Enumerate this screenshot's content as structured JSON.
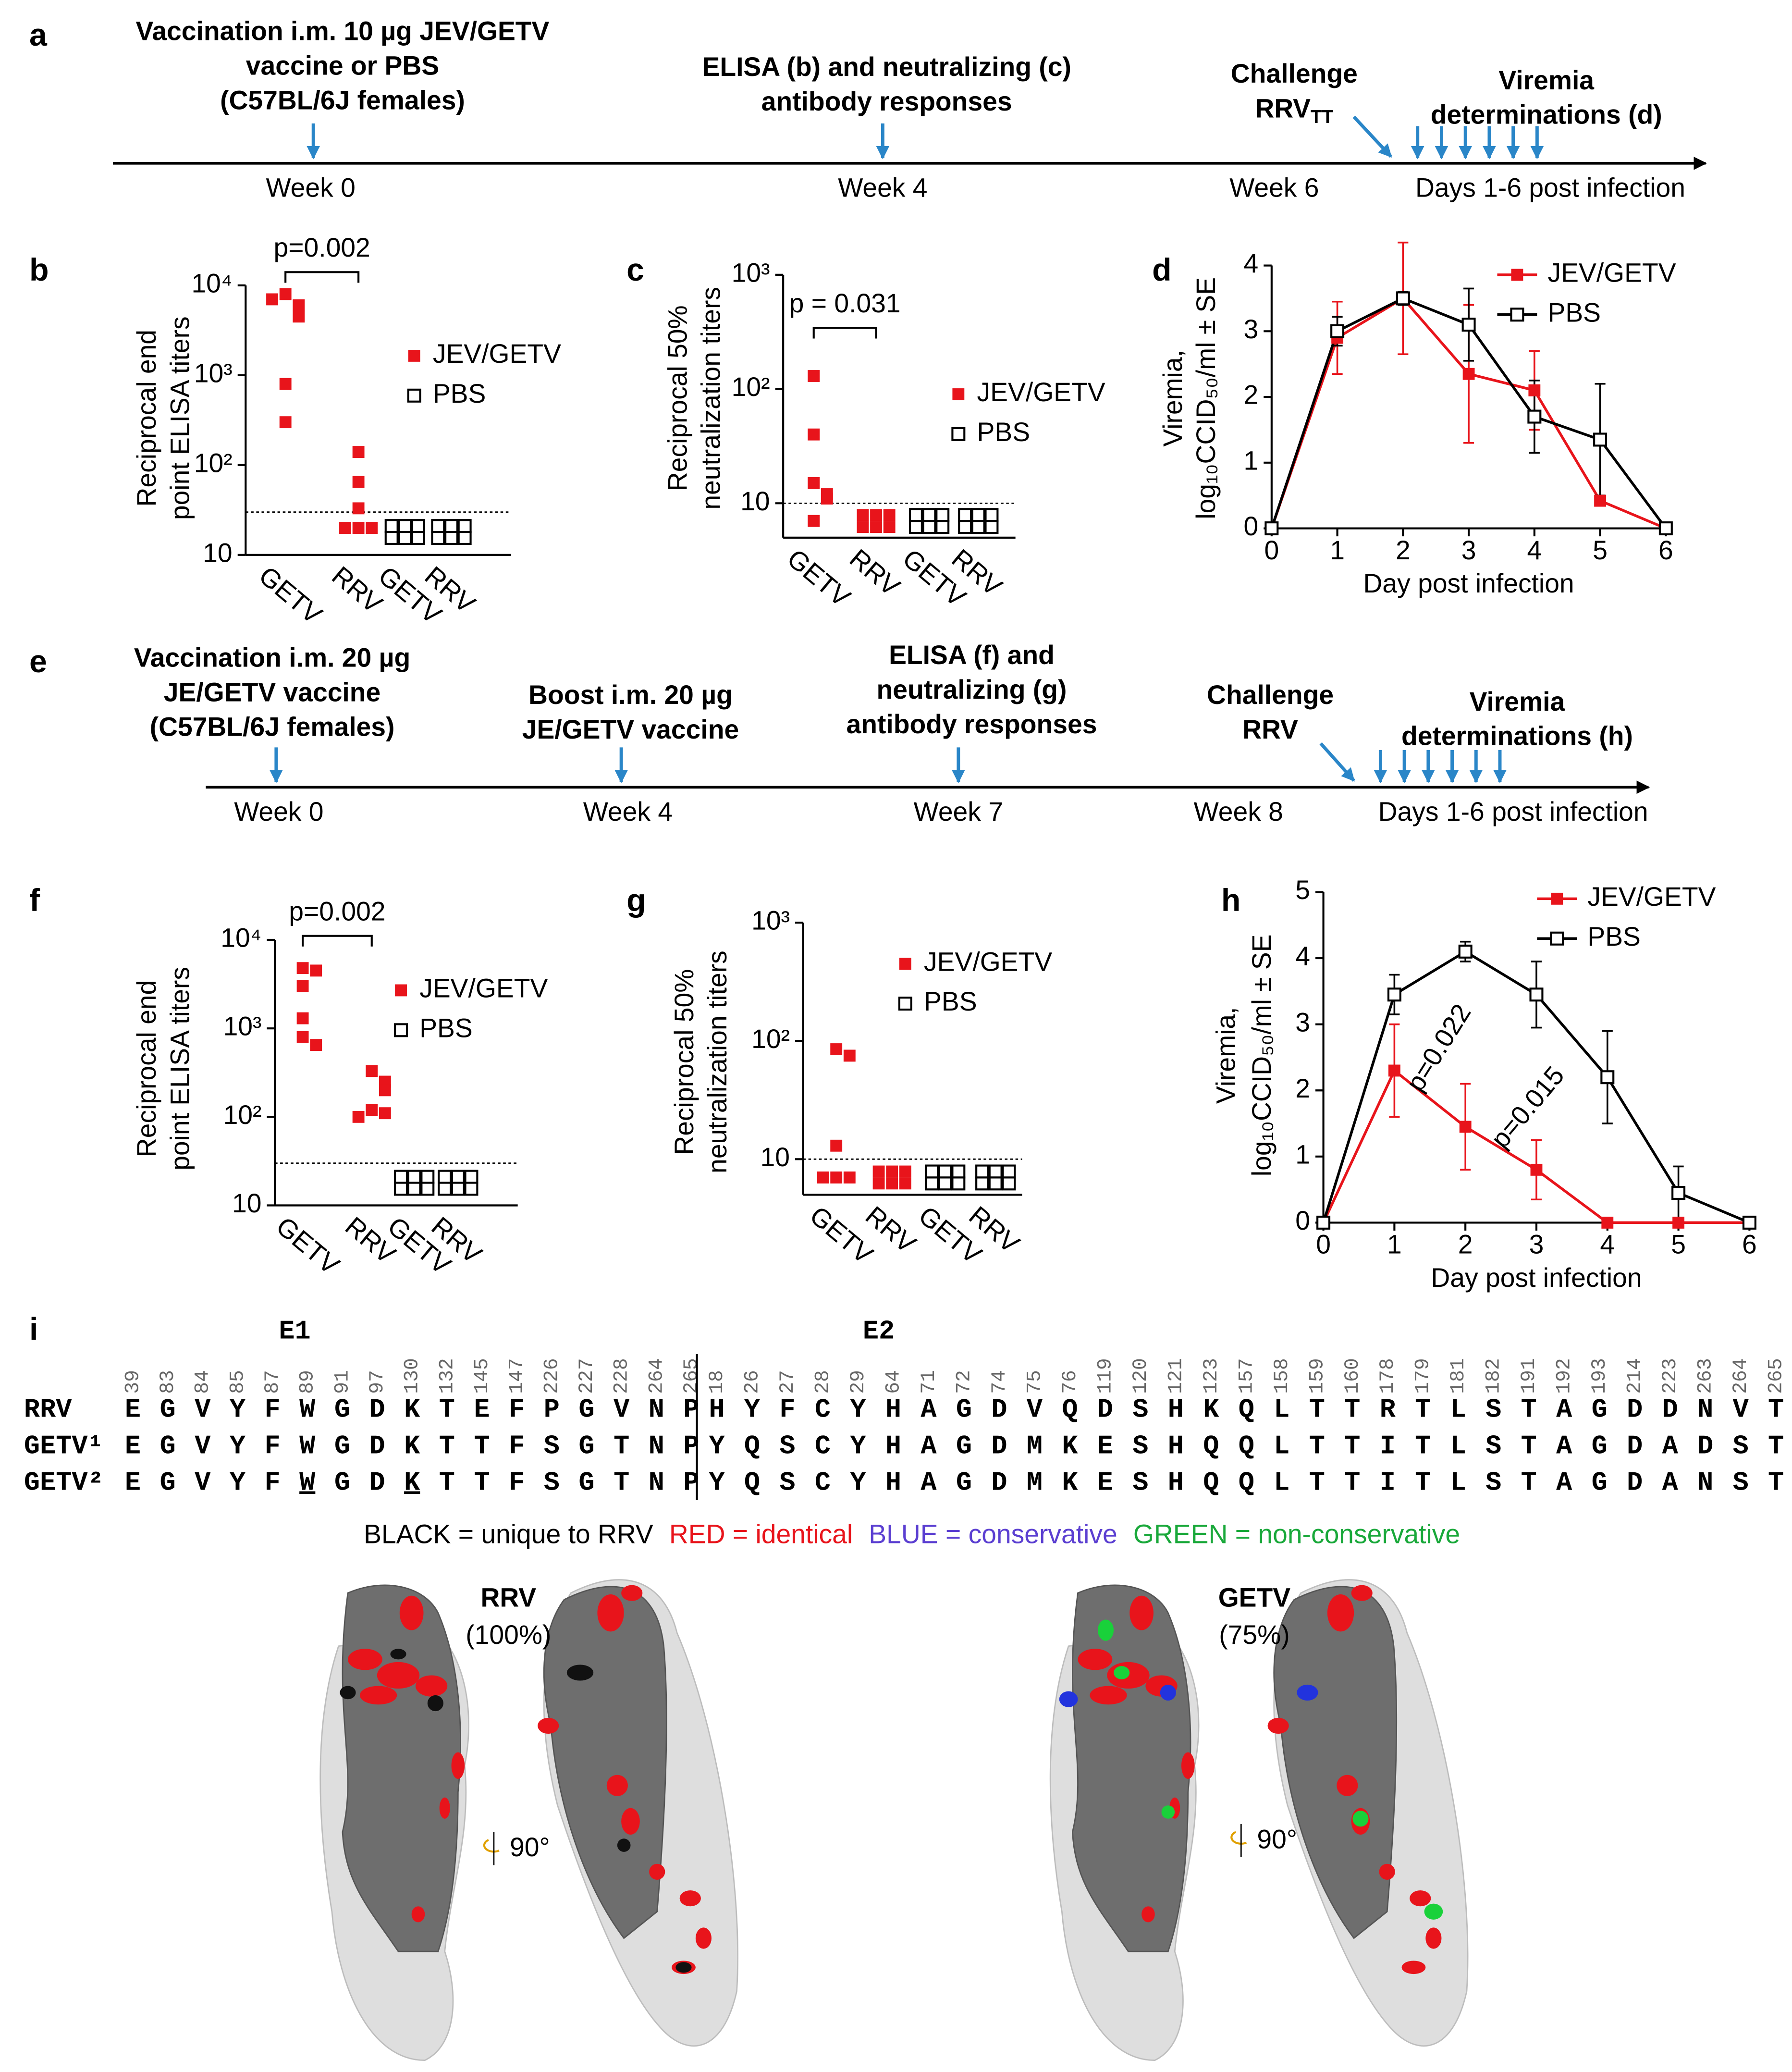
{
  "timelines": [
    {
      "panel": "a",
      "events": [
        {
          "lines": [
            "Vaccination  i.m. 10 µg JEV/GETV",
            "vaccine or PBS",
            "(C57BL/6J females)"
          ]
        },
        {
          "lines": [
            "ELISA (b) and neutralizing (c)",
            "antibody responses"
          ]
        },
        {
          "lines": [
            "Challenge",
            "RRV"
          ],
          "subscript": "TT"
        },
        {
          "lines": [
            "Viremia",
            "determinations (d)"
          ]
        }
      ],
      "ticks": [
        "Week 0",
        "Week 4",
        "Week 6",
        "Days 1-6 post infection"
      ]
    },
    {
      "panel": "e",
      "events": [
        {
          "lines": [
            "Vaccination i.m. 20 µg",
            "JE/GETV vaccine",
            "(C57BL/6J females)"
          ]
        },
        {
          "lines": [
            "Boost i.m. 20 µg",
            "JE/GETV vaccine"
          ]
        },
        {
          "lines": [
            "ELISA (f) and",
            "neutralizing (g)",
            "antibody responses"
          ]
        },
        {
          "lines": [
            "Challenge",
            "RRV"
          ]
        },
        {
          "lines": [
            "Viremia",
            "determinations (h)"
          ]
        }
      ],
      "ticks": [
        "Week 0",
        "Week 4",
        "Week 7",
        "Week 8",
        "Days 1-6 post infection"
      ]
    }
  ],
  "chart_data": [
    {
      "panel": "b",
      "type": "dotplot",
      "log": true,
      "ylabel": [
        "Reciprocal end",
        "point ELISA titers"
      ],
      "categories": [
        "GETV",
        "RRV",
        "GETV",
        "RRV"
      ],
      "ylim": [
        10,
        10000
      ],
      "yticks": [
        10,
        {
          "value": 100,
          "label": "10²"
        },
        {
          "value": 1000,
          "label": "10³"
        },
        {
          "value": 10000,
          "label": "10⁴"
        }
      ],
      "threshold": 30,
      "annotation": "p=0.002",
      "series": [
        {
          "name": "JEV/GETV",
          "color": "#e8141b",
          "marker": "filled",
          "values": [
            [
              8000,
              6000,
              7000,
              4500,
              800,
              300
            ],
            [
              140,
              65,
              33,
              20,
              20,
              20
            ],
            null,
            null
          ]
        },
        {
          "name": "PBS",
          "color": "#000000",
          "marker": "open",
          "values": [
            null,
            null,
            [
              18,
              18,
              18,
              18,
              18,
              18
            ],
            [
              18,
              18,
              18,
              18,
              18,
              18
            ]
          ]
        }
      ]
    },
    {
      "panel": "c",
      "type": "dotplot",
      "log": true,
      "ylabel": [
        "Reciprocal 50%",
        "neutralization titers"
      ],
      "categories": [
        "GETV",
        "RRV",
        "GETV",
        "RRV"
      ],
      "ylim": [
        5,
        1000
      ],
      "yticks": [
        10,
        {
          "value": 100,
          "label": "10²"
        },
        {
          "value": 1000,
          "label": "10³"
        }
      ],
      "threshold": 10,
      "annotation": "p = 0.031",
      "series": [
        {
          "name": "JEV/GETV",
          "color": "#e8141b",
          "marker": "filled",
          "values": [
            [
              130,
              40,
              15,
              12,
              11,
              7
            ],
            [
              7,
              7,
              7,
              7,
              7,
              7
            ],
            null,
            null
          ]
        },
        {
          "name": "PBS",
          "color": "#000000",
          "marker": "open",
          "values": [
            null,
            null,
            [
              7,
              7,
              7,
              7,
              7,
              7
            ],
            [
              7,
              7,
              7,
              7,
              7,
              7
            ]
          ]
        }
      ]
    },
    {
      "panel": "d",
      "type": "line",
      "ylabel": [
        "Viremia,",
        "log₁₀CCID₅₀/ml ± SE"
      ],
      "xlabel": "Day post infection",
      "x": [
        0,
        1,
        2,
        3,
        4,
        5,
        6
      ],
      "xlim": [
        0,
        6
      ],
      "xticks": [
        0,
        1,
        2,
        3,
        4,
        5,
        6
      ],
      "ylim": [
        0,
        4
      ],
      "yticks": [
        0,
        1,
        2,
        3,
        4
      ],
      "series": [
        {
          "name": "JEV/GETV",
          "color": "#e8141b",
          "marker": "filled",
          "values": [
            0,
            2.9,
            3.5,
            2.35,
            2.1,
            0.42,
            0
          ],
          "errors": [
            0,
            0.55,
            0.85,
            1.05,
            0.6,
            0,
            0
          ]
        },
        {
          "name": "PBS",
          "color": "#000000",
          "marker": "open",
          "values": [
            0,
            3.0,
            3.5,
            3.1,
            1.7,
            1.35,
            0
          ],
          "errors": [
            0,
            0.22,
            0.1,
            0.55,
            0.55,
            0.85,
            0
          ]
        }
      ]
    },
    {
      "panel": "f",
      "type": "dotplot",
      "log": true,
      "ylabel": [
        "Reciprocal end",
        "point ELISA titers"
      ],
      "categories": [
        "GETV",
        "RRV",
        "GETV",
        "RRV"
      ],
      "ylim": [
        10,
        10000
      ],
      "yticks": [
        10,
        {
          "value": 100,
          "label": "10²"
        },
        {
          "value": 1000,
          "label": "10³"
        },
        {
          "value": 10000,
          "label": "10⁴"
        }
      ],
      "threshold": 30,
      "annotation": "p=0.002",
      "series": [
        {
          "name": "JEV/GETV",
          "color": "#e8141b",
          "marker": "filled",
          "values": [
            [
              4800,
              4500,
              3000,
              1300,
              800,
              650
            ],
            [
              330,
              250,
              200,
              120,
              110,
              100
            ],
            null,
            null
          ]
        },
        {
          "name": "PBS",
          "color": "#000000",
          "marker": "open",
          "values": [
            null,
            null,
            [
              18,
              18,
              18,
              18,
              18,
              18
            ],
            [
              18,
              18,
              18,
              18,
              18,
              18
            ]
          ]
        }
      ]
    },
    {
      "panel": "g",
      "type": "dotplot",
      "log": true,
      "ylabel": [
        "Reciprocal 50%",
        "neutralization titers"
      ],
      "categories": [
        "GETV",
        "RRV",
        "GETV",
        "RRV"
      ],
      "ylim": [
        5,
        1000
      ],
      "yticks": [
        10,
        {
          "value": 100,
          "label": "10²"
        },
        {
          "value": 1000,
          "label": "10³"
        }
      ],
      "threshold": 10,
      "series": [
        {
          "name": "JEV/GETV",
          "color": "#e8141b",
          "marker": "filled",
          "values": [
            [
              85,
              75,
              13,
              7,
              7,
              7
            ],
            [
              7,
              7,
              7,
              7,
              7,
              7
            ],
            null,
            null
          ]
        },
        {
          "name": "PBS",
          "color": "#000000",
          "marker": "open",
          "values": [
            null,
            null,
            [
              7,
              7,
              7,
              7,
              7,
              7
            ],
            [
              7,
              7,
              7,
              7,
              7,
              7
            ]
          ]
        }
      ]
    },
    {
      "panel": "h",
      "type": "line",
      "ylabel": [
        "Viremia,",
        "log₁₀CCID₅₀/ml ± SE"
      ],
      "xlabel": "Day post infection",
      "x": [
        0,
        1,
        2,
        3,
        4,
        5,
        6
      ],
      "xlim": [
        0,
        6
      ],
      "xticks": [
        0,
        1,
        2,
        3,
        4,
        5,
        6
      ],
      "ylim": [
        0,
        5
      ],
      "yticks": [
        0,
        1,
        2,
        3,
        4,
        5
      ],
      "annotations": [
        "p=0.022",
        "p=0.015"
      ],
      "series": [
        {
          "name": "JEV/GETV",
          "color": "#e8141b",
          "marker": "filled",
          "values": [
            0,
            2.3,
            1.45,
            0.8,
            0,
            0,
            0
          ],
          "errors": [
            0,
            0.7,
            0.65,
            0.45,
            0,
            0,
            0
          ]
        },
        {
          "name": "PBS",
          "color": "#000000",
          "marker": "open",
          "values": [
            0,
            3.45,
            4.1,
            3.45,
            2.2,
            0.45,
            0
          ],
          "errors": [
            0,
            0.3,
            0.15,
            0.5,
            0.7,
            0.4,
            0
          ]
        }
      ]
    }
  ],
  "sequence": {
    "panel": "i",
    "regions": [
      {
        "name": "E1",
        "positions": [
          39,
          83,
          84,
          85,
          87,
          89,
          91,
          97,
          130,
          132,
          145,
          147,
          226,
          227,
          228,
          264,
          265
        ]
      },
      {
        "name": "E2",
        "positions": [
          18,
          26,
          27,
          28,
          29,
          64,
          71,
          72,
          74,
          75,
          76,
          119,
          120,
          121,
          123,
          157,
          158,
          159,
          160,
          178,
          179,
          181,
          182,
          191,
          192,
          193,
          214,
          223,
          263,
          264,
          265
        ]
      }
    ],
    "palette": {
      "k": "#000000",
      "r": "#e8141b",
      "b": "#5b3fd1",
      "g": "#19a83a"
    },
    "rows": [
      {
        "name": "RRV",
        "residues": [
          "EGVYFWGDKTEFPGVNP",
          "HYFCYHAGDVQDSHKQLTTRTLSTAGDDNVT"
        ],
        "colors": [
          "rrrrrrrrrrkrkrkrr",
          "kkrrrrrrrkkkrrkrrrrkrrrrrrrkrkr"
        ],
        "underlined": [
          [],
          []
        ]
      },
      {
        "name": "GETV¹",
        "residues": [
          "EGVYFWGDKTTFSGTNP",
          "YQSCYHAGDMKESHQQLTTITLSTAGDADST"
        ],
        "colors": [
          "rrrrrrrrrrgrbrgrr",
          "gggrrrrrrbbgrrgrrrrgrrrrrrrgbgr"
        ],
        "underlined": [
          [],
          []
        ]
      },
      {
        "name": "GETV²",
        "residues": [
          "EGVYFWGDKTTFSGTNP",
          "YQSCYHAGDMKESHQQLTTITLSTAGDANST"
        ],
        "colors": [
          "rrrrrrrrrrgrbrgrr",
          "gggrrrrrrbbgrrgrrrrgrrrrrrrgggr"
        ],
        "underlined": [
          [
            5,
            8
          ],
          []
        ]
      }
    ],
    "legend": [
      {
        "text": "BLACK = unique to RRV",
        "color": "k"
      },
      {
        "text": "RED = identical",
        "color": "r"
      },
      {
        "text": "BLUE = conservative",
        "color": "b"
      },
      {
        "text": "GREEN = non-conservative",
        "color": "g"
      }
    ]
  },
  "structures": {
    "items": [
      {
        "name": "RRV",
        "percent": "(100%)"
      },
      {
        "name": "GETV",
        "percent": "(75%)"
      }
    ],
    "rotation": "90°"
  }
}
